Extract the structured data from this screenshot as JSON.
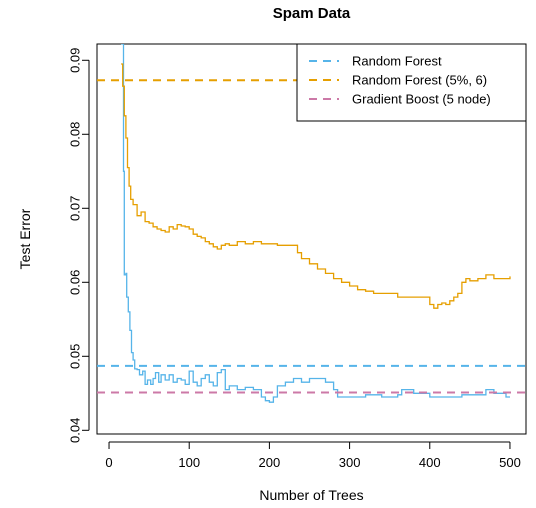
{
  "chart_data": {
    "type": "line",
    "title": "Spam Data",
    "xlabel": "Number of Trees",
    "ylabel": "Test Error",
    "xlim": [
      -15,
      520
    ],
    "ylim": [
      0.0395,
      0.0922
    ],
    "x_ticks": [
      0,
      100,
      200,
      300,
      400,
      500
    ],
    "y_ticks": [
      0.04,
      0.05,
      0.06,
      0.07,
      0.08,
      0.09
    ],
    "grid": false,
    "legend": {
      "position": "top-right",
      "entries": [
        {
          "label": "Random Forest",
          "color": "#56B4E9",
          "linestyle": "dashed"
        },
        {
          "label": "Random Forest (5%, 6)",
          "color": "#E69F00",
          "linestyle": "dashed"
        },
        {
          "label": "Gradient Boost (5 node)",
          "color": "#CC79A7",
          "linestyle": "dashed"
        }
      ]
    },
    "series": [
      {
        "name": "Random Forest",
        "color": "#56B4E9",
        "style": "line",
        "points": [
          [
            15,
            0.0922
          ],
          [
            18,
            0.075
          ],
          [
            19,
            0.061
          ],
          [
            21,
            0.0612
          ],
          [
            22,
            0.058
          ],
          [
            24,
            0.056
          ],
          [
            26,
            0.0535
          ],
          [
            28,
            0.0505
          ],
          [
            30,
            0.0495
          ],
          [
            32,
            0.0483
          ],
          [
            35,
            0.0482
          ],
          [
            38,
            0.0475
          ],
          [
            42,
            0.048
          ],
          [
            45,
            0.0462
          ],
          [
            48,
            0.0468
          ],
          [
            52,
            0.0462
          ],
          [
            55,
            0.047
          ],
          [
            58,
            0.0478
          ],
          [
            62,
            0.0465
          ],
          [
            65,
            0.0475
          ],
          [
            70,
            0.0468
          ],
          [
            75,
            0.0475
          ],
          [
            80,
            0.0465
          ],
          [
            85,
            0.047
          ],
          [
            90,
            0.0468
          ],
          [
            95,
            0.0462
          ],
          [
            100,
            0.048
          ],
          [
            105,
            0.0465
          ],
          [
            110,
            0.046
          ],
          [
            115,
            0.047
          ],
          [
            120,
            0.0475
          ],
          [
            125,
            0.0465
          ],
          [
            130,
            0.046
          ],
          [
            135,
            0.0478
          ],
          [
            140,
            0.0482
          ],
          [
            145,
            0.0455
          ],
          [
            150,
            0.046
          ],
          [
            160,
            0.0455
          ],
          [
            170,
            0.0458
          ],
          [
            180,
            0.0455
          ],
          [
            190,
            0.0445
          ],
          [
            195,
            0.044
          ],
          [
            200,
            0.0438
          ],
          [
            205,
            0.0445
          ],
          [
            210,
            0.046
          ],
          [
            220,
            0.0465
          ],
          [
            230,
            0.047
          ],
          [
            240,
            0.0465
          ],
          [
            250,
            0.047
          ],
          [
            260,
            0.047
          ],
          [
            270,
            0.0465
          ],
          [
            280,
            0.0455
          ],
          [
            285,
            0.0445
          ],
          [
            300,
            0.0445
          ],
          [
            320,
            0.0448
          ],
          [
            340,
            0.0445
          ],
          [
            360,
            0.0448
          ],
          [
            365,
            0.0455
          ],
          [
            380,
            0.045
          ],
          [
            400,
            0.0445
          ],
          [
            420,
            0.0445
          ],
          [
            440,
            0.0448
          ],
          [
            460,
            0.0448
          ],
          [
            470,
            0.0455
          ],
          [
            480,
            0.045
          ],
          [
            490,
            0.045
          ],
          [
            495,
            0.0445
          ],
          [
            500,
            0.0445
          ]
        ]
      },
      {
        "name": "Random Forest (5%, 6)",
        "color": "#E69F00",
        "style": "line",
        "points": [
          [
            15,
            0.0895
          ],
          [
            17,
            0.0865
          ],
          [
            19,
            0.0825
          ],
          [
            21,
            0.0795
          ],
          [
            23,
            0.0755
          ],
          [
            25,
            0.073
          ],
          [
            27,
            0.0712
          ],
          [
            30,
            0.0705
          ],
          [
            35,
            0.069
          ],
          [
            40,
            0.0695
          ],
          [
            45,
            0.0682
          ],
          [
            50,
            0.068
          ],
          [
            55,
            0.0675
          ],
          [
            60,
            0.0672
          ],
          [
            65,
            0.067
          ],
          [
            70,
            0.0668
          ],
          [
            75,
            0.0675
          ],
          [
            80,
            0.0672
          ],
          [
            85,
            0.0678
          ],
          [
            90,
            0.0676
          ],
          [
            95,
            0.0675
          ],
          [
            100,
            0.0672
          ],
          [
            105,
            0.0665
          ],
          [
            110,
            0.0662
          ],
          [
            115,
            0.066
          ],
          [
            120,
            0.0655
          ],
          [
            125,
            0.0652
          ],
          [
            130,
            0.0648
          ],
          [
            135,
            0.0645
          ],
          [
            140,
            0.065
          ],
          [
            145,
            0.0652
          ],
          [
            150,
            0.065
          ],
          [
            160,
            0.0655
          ],
          [
            170,
            0.0652
          ],
          [
            180,
            0.0655
          ],
          [
            190,
            0.0652
          ],
          [
            200,
            0.0652
          ],
          [
            210,
            0.065
          ],
          [
            220,
            0.065
          ],
          [
            230,
            0.065
          ],
          [
            235,
            0.064
          ],
          [
            240,
            0.0632
          ],
          [
            250,
            0.0625
          ],
          [
            260,
            0.0618
          ],
          [
            270,
            0.0612
          ],
          [
            280,
            0.0605
          ],
          [
            290,
            0.06
          ],
          [
            300,
            0.0595
          ],
          [
            310,
            0.059
          ],
          [
            320,
            0.0588
          ],
          [
            330,
            0.0585
          ],
          [
            340,
            0.0585
          ],
          [
            350,
            0.0585
          ],
          [
            360,
            0.058
          ],
          [
            370,
            0.058
          ],
          [
            380,
            0.058
          ],
          [
            390,
            0.058
          ],
          [
            395,
            0.058
          ],
          [
            400,
            0.057
          ],
          [
            405,
            0.0565
          ],
          [
            410,
            0.057
          ],
          [
            415,
            0.0572
          ],
          [
            420,
            0.057
          ],
          [
            425,
            0.0575
          ],
          [
            430,
            0.058
          ],
          [
            435,
            0.0585
          ],
          [
            440,
            0.06
          ],
          [
            445,
            0.0605
          ],
          [
            450,
            0.0602
          ],
          [
            460,
            0.0605
          ],
          [
            470,
            0.061
          ],
          [
            480,
            0.0605
          ],
          [
            490,
            0.0605
          ],
          [
            495,
            0.0605
          ],
          [
            500,
            0.0608
          ]
        ]
      },
      {
        "name": "Random Forest",
        "color": "#56B4E9",
        "style": "hline-dashed",
        "y": 0.0487
      },
      {
        "name": "Random Forest (5%, 6)",
        "color": "#E69F00",
        "style": "hline-dashed",
        "y": 0.0873
      },
      {
        "name": "Gradient Boost (5 node)",
        "color": "#CC79A7",
        "style": "hline-dashed",
        "y": 0.0451
      }
    ]
  }
}
